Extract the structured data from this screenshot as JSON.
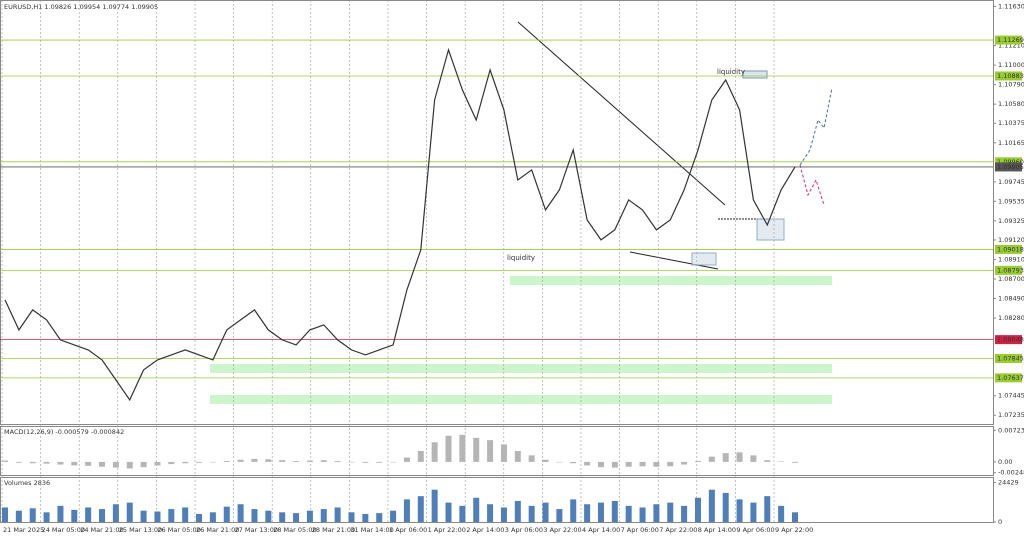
{
  "chart_data": {
    "type": "line",
    "title": "EURUSD,H1  1.09826 1.09954 1.09774 1.09905",
    "color": "#333333",
    "annotations": [
      "liquidity",
      "liquidity"
    ],
    "values": [
      1.08475,
      1.08153,
      1.08368,
      1.0826,
      1.08045,
      1.07991,
      1.07938,
      1.0783,
      1.07615,
      1.074,
      1.07723,
      1.0783,
      1.07884,
      1.07938,
      1.07884,
      1.0783,
      1.08153,
      1.0826,
      1.08368,
      1.08153,
      1.08045,
      1.07991,
      1.08153,
      1.08206,
      1.08045,
      1.07938,
      1.07884,
      1.07938,
      1.07991,
      1.08583,
      1.09013,
      1.10625,
      1.11163,
      1.10733,
      1.1041,
      1.10948,
      1.10518,
      1.09765,
      1.09873,
      1.09443,
      1.09658,
      1.10088,
      1.09335,
      1.0912,
      1.09228,
      1.0955,
      1.09443,
      1.09228,
      1.09335,
      1.09658,
      1.10088,
      1.10625,
      1.1084,
      1.10518,
      1.0955,
      1.09281,
      1.09658,
      1.09905
    ],
    "ylim": [
      1.0713,
      1.117
    ],
    "yticks": [
      {
        "value": 1.1163,
        "label": "1.11630"
      },
      {
        "value": 1.1121,
        "label": "1.11210"
      },
      {
        "value": 1.11,
        "label": "1.11000"
      },
      {
        "value": 1.1079,
        "label": "1.10790"
      },
      {
        "value": 1.1058,
        "label": "1.10580"
      },
      {
        "value": 1.10375,
        "label": "1.10375"
      },
      {
        "value": 1.10165,
        "label": "1.10165"
      },
      {
        "value": 1.09745,
        "label": "1.09745"
      },
      {
        "value": 1.09535,
        "label": "1.09535"
      },
      {
        "value": 1.09325,
        "label": "1.09325"
      },
      {
        "value": 1.0912,
        "label": "1.09120"
      },
      {
        "value": 1.0891,
        "label": "1.08910"
      },
      {
        "value": 1.087,
        "label": "1.08700"
      },
      {
        "value": 1.0849,
        "label": "1.08490"
      },
      {
        "value": 1.0828,
        "label": "1.08280"
      },
      {
        "value": 1.07445,
        "label": "1.07445"
      },
      {
        "value": 1.07235,
        "label": "1.07235"
      }
    ],
    "levels": [
      {
        "value": 1.11269,
        "label": "1.11269",
        "color": "#9acd32"
      },
      {
        "value": 1.10883,
        "label": "1.10883",
        "color": "#9acd32"
      },
      {
        "value": 1.0996,
        "label": "1.09960",
        "color": "#9acd32"
      },
      {
        "value": 1.09905,
        "label": "1.09905",
        "color": "#555555"
      },
      {
        "value": 1.09018,
        "label": "1.09018",
        "color": "#9acd32"
      },
      {
        "value": 1.08793,
        "label": "1.08793",
        "color": "#9acd32"
      },
      {
        "value": 1.08048,
        "label": "1.08048",
        "color": "#cc2244"
      },
      {
        "value": 1.07845,
        "label": "1.07845",
        "color": "#9acd32"
      },
      {
        "value": 1.07637,
        "label": "1.07637",
        "color": "#9acd32"
      }
    ],
    "macd": {
      "label": "MACD(12,26,9) -0.000579 -0.000842",
      "color": "#b5b5b5",
      "values": [
        0.0003,
        -0.0002,
        -0.0003,
        -0.0004,
        -0.0006,
        -0.0008,
        -0.0009,
        -0.0011,
        -0.0013,
        -0.0015,
        -0.0012,
        -0.0008,
        -0.0005,
        -0.0003,
        -0.0002,
        -0.0001,
        0.0002,
        0.0005,
        0.0007,
        0.0006,
        0.0004,
        0.0002,
        0.0003,
        0.0004,
        0.0002,
        0,
        -0.0002,
        -0.0002,
        -0.0001,
        0.001,
        0.0025,
        0.0045,
        0.006,
        0.0062,
        0.0055,
        0.005,
        0.004,
        0.0025,
        0.0015,
        0.0005,
        0,
        -0.0003,
        -0.0008,
        -0.0012,
        -0.0013,
        -0.0011,
        -0.001,
        -0.0011,
        -0.001,
        -0.0006,
        0.0002,
        0.0012,
        0.002,
        0.0022,
        0.0015,
        0.0004,
        0.0001,
        -0.0002
      ],
      "ylim": [
        -0.003,
        0.008
      ],
      "yticks": [
        0.00723,
        {
          "value": 0,
          "label": "0.00"
        },
        -0.00248
      ]
    },
    "volume": {
      "label": "Volumes 2836",
      "color": "#4f7fb8",
      "values": [
        9000,
        7000,
        8500,
        6000,
        10000,
        7500,
        9000,
        8000,
        11000,
        12000,
        7000,
        6500,
        8000,
        9000,
        5000,
        6000,
        9500,
        11000,
        8000,
        7000,
        6000,
        5500,
        7000,
        8000,
        9000,
        6000,
        5000,
        5500,
        7000,
        14000,
        16000,
        20000,
        12000,
        10000,
        15000,
        11000,
        9000,
        13000,
        10000,
        12000,
        8000,
        14000,
        11000,
        12000,
        13000,
        10000,
        9000,
        11000,
        12000,
        10000,
        15000,
        20000,
        18000,
        14000,
        12000,
        16000,
        10000,
        6000
      ],
      "ylim": [
        0,
        26000
      ],
      "yticks": [
        24429,
        0
      ]
    },
    "x_labels": [
      "21 Mar 2025",
      "24 Mar 05:00",
      "24 Mar 21:00",
      "25 Mar 13:00",
      "26 Mar 05:00",
      "26 Mar 21:00",
      "27 Mar 13:00",
      "28 Mar 05:00",
      "28 Mar 21:00",
      "31 Mar 14:00",
      "1 Apr 06:00",
      "1 Apr 22:00",
      "2 Apr 14:00",
      "3 Apr 06:00",
      "3 Apr 22:00",
      "4 Apr 14:00",
      "7 Apr 06:00",
      "7 Apr 22:00",
      "8 Apr 14:00",
      "9 Apr 06:00",
      "9 Apr 22:00"
    ]
  }
}
